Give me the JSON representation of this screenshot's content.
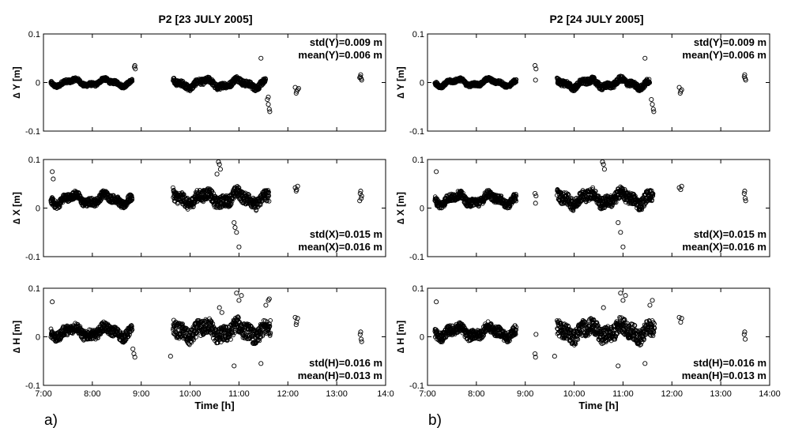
{
  "figure": {
    "panels": [
      {
        "title": "P2 [23 JULY 2005]",
        "sub_label": "a)"
      },
      {
        "title": "P2 [24 JULY 2005]",
        "sub_label": "b)"
      }
    ],
    "row_ylabels": [
      "∆ Y [m]",
      "∆ X [m]",
      "∆ H [m]"
    ],
    "xlabel": "Time [h]"
  },
  "chart_data": [
    {
      "type": "scatter",
      "panel": "a",
      "component": "Y",
      "title": "P2 [23 JULY 2005]",
      "xlabel": "",
      "ylabel": "∆ Y [m]",
      "xlim": [
        7.0,
        14.0
      ],
      "ylim": [
        -0.1,
        0.1
      ],
      "xticklabels": [
        "7:00",
        "8:00",
        "9:00",
        "10:00",
        "11:00",
        "12:00",
        "13:00",
        "14:0"
      ],
      "yticklabels": [
        "0.1",
        "0",
        "-0.1"
      ],
      "annotations": [
        "std(Y)=0.009 m",
        "mean(Y)=0.006 m"
      ],
      "segments": [
        {
          "t0": 7.15,
          "t1": 8.82,
          "base": 0.0,
          "amp": 0.008,
          "noise": 0.004
        },
        {
          "t0": 9.65,
          "t1": 11.55,
          "base": -0.002,
          "amp": 0.01,
          "noise": 0.006
        }
      ],
      "points": [
        [
          8.87,
          0.035
        ],
        [
          8.88,
          0.028
        ],
        [
          8.86,
          0.032
        ],
        [
          11.45,
          0.05
        ],
        [
          11.58,
          -0.035
        ],
        [
          11.6,
          -0.045
        ],
        [
          11.62,
          -0.055
        ],
        [
          11.63,
          -0.06
        ],
        [
          11.6,
          -0.03
        ],
        [
          12.15,
          -0.01
        ],
        [
          12.18,
          -0.018
        ],
        [
          12.2,
          -0.015
        ],
        [
          12.17,
          -0.022
        ],
        [
          12.22,
          -0.012
        ],
        [
          13.48,
          0.012
        ],
        [
          13.5,
          0.008
        ],
        [
          13.49,
          0.016
        ],
        [
          13.51,
          0.005
        ],
        [
          13.47,
          0.01
        ]
      ]
    },
    {
      "type": "scatter",
      "panel": "a",
      "component": "X",
      "title": "",
      "xlabel": "",
      "ylabel": "∆ X [m]",
      "xlim": [
        7.0,
        14.0
      ],
      "ylim": [
        -0.1,
        0.1
      ],
      "xticklabels": [
        "7:00",
        "8:00",
        "9:00",
        "10:00",
        "11:00",
        "12:00",
        "13:00",
        "14:0"
      ],
      "yticklabels": [
        "0.1",
        "0",
        "-0.1"
      ],
      "annotations": [
        "std(X)=0.015 m",
        "mean(X)=0.016 m"
      ],
      "segments": [
        {
          "t0": 7.15,
          "t1": 8.82,
          "base": 0.018,
          "amp": 0.012,
          "noise": 0.008
        },
        {
          "t0": 9.65,
          "t1": 11.62,
          "base": 0.02,
          "amp": 0.014,
          "noise": 0.012
        }
      ],
      "points": [
        [
          7.18,
          0.075
        ],
        [
          7.2,
          0.06
        ],
        [
          10.58,
          0.095
        ],
        [
          10.6,
          0.09
        ],
        [
          10.62,
          0.08
        ],
        [
          10.55,
          0.07
        ],
        [
          10.9,
          -0.03
        ],
        [
          10.95,
          -0.05
        ],
        [
          11.0,
          -0.08
        ],
        [
          10.92,
          -0.04
        ],
        [
          12.15,
          0.042
        ],
        [
          12.18,
          0.038
        ],
        [
          12.2,
          0.045
        ],
        [
          12.17,
          0.035
        ],
        [
          13.48,
          0.03
        ],
        [
          13.5,
          0.02
        ],
        [
          13.49,
          0.035
        ],
        [
          13.51,
          0.025
        ],
        [
          13.47,
          0.015
        ]
      ]
    },
    {
      "type": "scatter",
      "panel": "a",
      "component": "H",
      "title": "",
      "xlabel": "Time [h]",
      "ylabel": "∆ H [m]",
      "xlim": [
        7.0,
        14.0
      ],
      "ylim": [
        -0.1,
        0.1
      ],
      "xticklabels": [
        "7:00",
        "8:00",
        "9:00",
        "10:00",
        "11:00",
        "12:00",
        "13:00",
        "14:0"
      ],
      "yticklabels": [
        "0.1",
        "0",
        "-0.1"
      ],
      "annotations": [
        "std(H)=0.016 m",
        "mean(H)=0.013 m"
      ],
      "segments": [
        {
          "t0": 7.15,
          "t1": 8.82,
          "base": 0.01,
          "amp": 0.012,
          "noise": 0.01
        },
        {
          "t0": 9.65,
          "t1": 11.65,
          "base": 0.012,
          "amp": 0.015,
          "noise": 0.016
        }
      ],
      "points": [
        [
          7.18,
          0.072
        ],
        [
          8.85,
          -0.035
        ],
        [
          8.87,
          -0.042
        ],
        [
          8.83,
          -0.025
        ],
        [
          9.6,
          -0.04
        ],
        [
          10.6,
          0.06
        ],
        [
          10.65,
          0.05
        ],
        [
          10.9,
          -0.06
        ],
        [
          10.95,
          0.09
        ],
        [
          11.0,
          0.075
        ],
        [
          11.05,
          0.085
        ],
        [
          11.55,
          0.065
        ],
        [
          11.6,
          0.075
        ],
        [
          11.62,
          0.078
        ],
        [
          11.45,
          -0.055
        ],
        [
          12.15,
          0.04
        ],
        [
          12.18,
          0.03
        ],
        [
          12.2,
          0.038
        ],
        [
          12.17,
          0.025
        ],
        [
          13.48,
          0.005
        ],
        [
          13.5,
          -0.005
        ],
        [
          13.49,
          0.01
        ],
        [
          13.51,
          -0.01
        ]
      ]
    },
    {
      "type": "scatter",
      "panel": "b",
      "component": "Y",
      "title": "P2 [24 JULY 2005]",
      "xlabel": "",
      "ylabel": "∆ Y [m]",
      "xlim": [
        7.0,
        14.0
      ],
      "ylim": [
        -0.1,
        0.1
      ],
      "xticklabels": [
        "7:00",
        "8:00",
        "9:00",
        "10:00",
        "11:00",
        "12:00",
        "13:00",
        "14:00"
      ],
      "yticklabels": [
        "0.1",
        "0",
        "-0.1"
      ],
      "annotations": [
        "std(Y)=0.009 m",
        "mean(Y)=0.006 m"
      ],
      "segments": [
        {
          "t0": 7.15,
          "t1": 8.82,
          "base": 0.0,
          "amp": 0.008,
          "noise": 0.004
        },
        {
          "t0": 9.65,
          "t1": 11.55,
          "base": -0.002,
          "amp": 0.01,
          "noise": 0.006
        }
      ],
      "points": [
        [
          9.2,
          0.035
        ],
        [
          9.22,
          0.028
        ],
        [
          9.21,
          0.005
        ],
        [
          11.45,
          0.05
        ],
        [
          11.58,
          -0.035
        ],
        [
          11.6,
          -0.045
        ],
        [
          11.62,
          -0.055
        ],
        [
          11.63,
          -0.06
        ],
        [
          12.15,
          -0.01
        ],
        [
          12.18,
          -0.018
        ],
        [
          12.2,
          -0.015
        ],
        [
          12.17,
          -0.022
        ],
        [
          13.48,
          0.012
        ],
        [
          13.5,
          0.008
        ],
        [
          13.49,
          0.016
        ],
        [
          13.51,
          0.005
        ]
      ]
    },
    {
      "type": "scatter",
      "panel": "b",
      "component": "X",
      "title": "",
      "xlabel": "",
      "ylabel": "∆ X [m]",
      "xlim": [
        7.0,
        14.0
      ],
      "ylim": [
        -0.1,
        0.1
      ],
      "xticklabels": [
        "7:00",
        "8:00",
        "9:00",
        "10:00",
        "11:00",
        "12:00",
        "13:00",
        "14:00"
      ],
      "yticklabels": [
        "0.1",
        "0",
        "-0.1"
      ],
      "annotations": [
        "std(X)=0.015 m",
        "mean(X)=0.016 m"
      ],
      "segments": [
        {
          "t0": 7.15,
          "t1": 8.82,
          "base": 0.018,
          "amp": 0.012,
          "noise": 0.008
        },
        {
          "t0": 9.65,
          "t1": 11.62,
          "base": 0.02,
          "amp": 0.014,
          "noise": 0.012
        }
      ],
      "points": [
        [
          7.18,
          0.075
        ],
        [
          9.2,
          0.03
        ],
        [
          9.21,
          0.01
        ],
        [
          9.22,
          0.025
        ],
        [
          10.58,
          0.095
        ],
        [
          10.6,
          0.09
        ],
        [
          10.62,
          0.08
        ],
        [
          10.9,
          -0.03
        ],
        [
          10.95,
          -0.05
        ],
        [
          11.0,
          -0.08
        ],
        [
          12.15,
          0.042
        ],
        [
          12.18,
          0.038
        ],
        [
          12.2,
          0.045
        ],
        [
          13.48,
          0.03
        ],
        [
          13.5,
          0.02
        ],
        [
          13.49,
          0.035
        ],
        [
          13.51,
          0.015
        ]
      ]
    },
    {
      "type": "scatter",
      "panel": "b",
      "component": "H",
      "title": "",
      "xlabel": "Time [h]",
      "ylabel": "∆ H [m]",
      "xlim": [
        7.0,
        14.0
      ],
      "ylim": [
        -0.1,
        0.1
      ],
      "xticklabels": [
        "7:00",
        "8:00",
        "9:00",
        "10:00",
        "11:00",
        "12:00",
        "13:00",
        "14:00"
      ],
      "yticklabels": [
        "0.1",
        "0",
        "-0.1"
      ],
      "annotations": [
        "std(H)=0.016 m",
        "mean(H)=0.013 m"
      ],
      "segments": [
        {
          "t0": 7.15,
          "t1": 8.82,
          "base": 0.01,
          "amp": 0.012,
          "noise": 0.01
        },
        {
          "t0": 9.65,
          "t1": 11.65,
          "base": 0.012,
          "amp": 0.015,
          "noise": 0.016
        }
      ],
      "points": [
        [
          7.18,
          0.072
        ],
        [
          9.2,
          -0.035
        ],
        [
          9.21,
          -0.042
        ],
        [
          9.22,
          0.005
        ],
        [
          9.6,
          -0.04
        ],
        [
          10.6,
          0.06
        ],
        [
          10.9,
          -0.06
        ],
        [
          10.95,
          0.09
        ],
        [
          11.0,
          0.075
        ],
        [
          11.05,
          0.085
        ],
        [
          11.55,
          0.065
        ],
        [
          11.6,
          0.075
        ],
        [
          11.45,
          -0.055
        ],
        [
          12.15,
          0.04
        ],
        [
          12.18,
          0.03
        ],
        [
          12.2,
          0.038
        ],
        [
          13.48,
          0.005
        ],
        [
          13.5,
          -0.005
        ],
        [
          13.49,
          0.01
        ]
      ]
    }
  ]
}
